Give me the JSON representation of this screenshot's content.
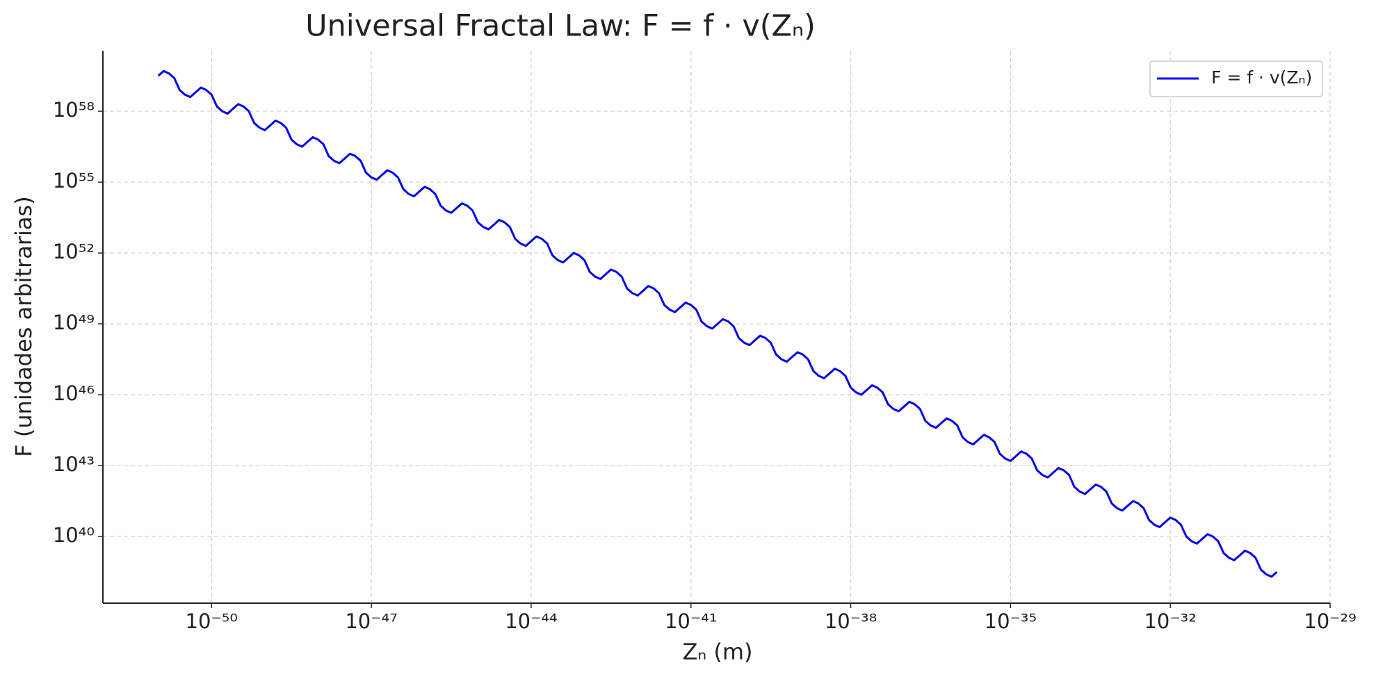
{
  "chart_data": {
    "type": "line",
    "title": "Universal Fractal Law: F = f · v(Zₙ)",
    "xlabel": "Zₙ (m)",
    "ylabel": "F (unidades arbitrarias)",
    "xscale": "log",
    "yscale": "log",
    "grid": true,
    "legend": "upper right",
    "xlim": [
      9.12e-53,
      1e-29
    ],
    "ylim": [
      1.51e+37,
      3.63e+60
    ],
    "xticks": [
      {
        "value": 1e-50,
        "label": "10⁻⁵⁰"
      },
      {
        "value": 1e-47,
        "label": "10⁻⁴⁷"
      },
      {
        "value": 1e-44,
        "label": "10⁻⁴⁴"
      },
      {
        "value": 1e-41,
        "label": "10⁻⁴¹"
      },
      {
        "value": 1e-38,
        "label": "10⁻³⁸"
      },
      {
        "value": 1e-35,
        "label": "10⁻³⁵"
      },
      {
        "value": 1e-32,
        "label": "10⁻³²"
      },
      {
        "value": 1e-29,
        "label": "10⁻²⁹"
      }
    ],
    "yticks": [
      {
        "value": 1e+58,
        "label": "10⁵⁸"
      },
      {
        "value": 1e+55,
        "label": "10⁵⁵"
      },
      {
        "value": 1e+52,
        "label": "10⁵²"
      },
      {
        "value": 1e+49,
        "label": "10⁴⁹"
      },
      {
        "value": 1e+46,
        "label": "10⁴⁶"
      },
      {
        "value": 1e+43,
        "label": "10⁴³"
      },
      {
        "value": 1e+40,
        "label": "10⁴⁰"
      }
    ],
    "x": [
      1e-51,
      1.26e-51,
      1.58e-51,
      2e-51,
      2.51e-51,
      3.16e-51,
      3.98e-51,
      5.01e-51,
      6.31e-51,
      7.94e-51,
      1e-50,
      1.26e-50,
      1.58e-50,
      2e-50,
      2.51e-50,
      3.16e-50,
      3.98e-50,
      5.01e-50,
      6.31e-50,
      7.94e-50,
      1e-49,
      1.26e-49,
      1.58e-49,
      2e-49,
      2.51e-49,
      3.16e-49,
      3.98e-49,
      5.01e-49,
      6.31e-49,
      7.94e-49,
      1e-48,
      1.26e-48,
      1.58e-48,
      2e-48,
      2.51e-48,
      3.16e-48,
      3.98e-48,
      5.01e-48,
      6.31e-48,
      7.94e-48,
      1e-47,
      1.26e-47,
      1.58e-47,
      2e-47,
      2.51e-47,
      3.16e-47,
      3.98e-47,
      5.01e-47,
      6.31e-47,
      7.94e-47,
      1e-46,
      1.26e-46,
      1.58e-46,
      2e-46,
      2.51e-46,
      3.16e-46,
      3.98e-46,
      5.01e-46,
      6.31e-46,
      7.94e-46,
      1e-45,
      1.26e-45,
      1.58e-45,
      2e-45,
      2.51e-45,
      3.16e-45,
      3.98e-45,
      5.01e-45,
      6.31e-45,
      7.94e-45,
      1e-44,
      1.26e-44,
      1.58e-44,
      2e-44,
      2.51e-44,
      3.16e-44,
      3.98e-44,
      5.01e-44,
      6.31e-44,
      7.94e-44,
      1e-43,
      1.26e-43,
      1.58e-43,
      2e-43,
      2.51e-43,
      3.16e-43,
      3.98e-43,
      5.01e-43,
      6.31e-43,
      7.94e-43,
      1e-42,
      1.26e-42,
      1.58e-42,
      2e-42,
      2.51e-42,
      3.16e-42,
      3.98e-42,
      5.01e-42,
      6.31e-42,
      7.94e-42,
      1e-41,
      1.26e-41,
      1.58e-41,
      2e-41,
      2.51e-41,
      3.16e-41,
      3.98e-41,
      5.01e-41,
      6.31e-41,
      7.94e-41,
      1e-40,
      1.26e-40,
      1.58e-40,
      2e-40,
      2.51e-40,
      3.16e-40,
      3.98e-40,
      5.01e-40,
      6.31e-40,
      7.94e-40,
      1e-39,
      1.26e-39,
      1.58e-39,
      2e-39,
      2.51e-39,
      3.16e-39,
      3.98e-39,
      5.01e-39,
      6.31e-39,
      7.94e-39,
      1e-38,
      1.26e-38,
      1.58e-38,
      2e-38,
      2.51e-38,
      3.16e-38,
      3.98e-38,
      5.01e-38,
      6.31e-38,
      7.94e-38,
      1e-37,
      1.26e-37,
      1.58e-37,
      2e-37,
      2.51e-37,
      3.16e-37,
      3.98e-37,
      5.01e-37,
      6.31e-37,
      7.94e-37,
      1e-36,
      1.26e-36,
      1.58e-36,
      2e-36,
      2.51e-36,
      3.16e-36,
      3.98e-36,
      5.01e-36,
      6.31e-36,
      7.94e-36,
      1e-35,
      1.26e-35,
      1.58e-35,
      2e-35,
      2.51e-35,
      3.16e-35,
      3.98e-35,
      5.01e-35,
      6.31e-35,
      7.94e-35,
      1e-34,
      1.26e-34,
      1.58e-34,
      2e-34,
      2.51e-34,
      3.16e-34,
      3.98e-34,
      5.01e-34,
      6.31e-34,
      7.94e-34,
      1e-33,
      1.26e-33,
      1.58e-33,
      2e-33,
      2.51e-33,
      3.16e-33,
      3.98e-33,
      5.01e-33,
      6.31e-33,
      7.94e-33,
      1e-32,
      1.26e-32,
      1.58e-32,
      2e-32,
      2.51e-32,
      3.16e-32,
      3.98e-32,
      5.01e-32,
      6.31e-32,
      7.94e-32,
      1e-31,
      1.26e-31,
      1.58e-31,
      2e-31,
      2.51e-31,
      3.16e-31,
      3.98e-31,
      5.01e-31,
      6.31e-31,
      7.94e-31,
      1e-30
    ],
    "series": [
      {
        "name": "F = f · v(Zₙ)",
        "color": "#0000ee",
        "values": [
          3.16e+59,
          5.01e+59,
          3.98e+59,
          2.51e+59,
          7.94e+58,
          5.01e+58,
          3.98e+58,
          6.31e+58,
          1e+59,
          7.94e+58,
          5.01e+58,
          1.58e+58,
          1e+58,
          7.94e+57,
          1.26e+58,
          2e+58,
          1.58e+58,
          1e+58,
          3.16e+57,
          2e+57,
          1.58e+57,
          2.51e+57,
          3.98e+57,
          3.16e+57,
          2e+57,
          6.31e+56,
          3.98e+56,
          3.16e+56,
          5.01e+56,
          7.94e+56,
          6.31e+56,
          3.98e+56,
          1.26e+56,
          7.94e+55,
          6.31e+55,
          1e+56,
          1.58e+56,
          1.26e+56,
          7.94e+55,
          2.51e+55,
          1.58e+55,
          1.26e+55,
          2e+55,
          3.16e+55,
          2.51e+55,
          1.58e+55,
          5.01e+54,
          3.16e+54,
          2.51e+54,
          3.98e+54,
          6.31e+54,
          5.01e+54,
          3.16e+54,
          1e+54,
          6.31e+53,
          5.01e+53,
          7.94e+53,
          1.26e+54,
          1e+54,
          6.31e+53,
          2e+53,
          1.26e+53,
          1e+53,
          1.58e+53,
          2.51e+53,
          2e+53,
          1.26e+53,
          3.98e+52,
          2.51e+52,
          2e+52,
          3.16e+52,
          5.01e+52,
          3.98e+52,
          2.51e+52,
          7.94e+51,
          5.01e+51,
          3.98e+51,
          6.31e+51,
          1e+52,
          7.94e+51,
          5.01e+51,
          1.58e+51,
          1e+51,
          7.94e+50,
          1.26e+51,
          2e+51,
          1.58e+51,
          1e+51,
          3.16e+50,
          2e+50,
          1.58e+50,
          2.51e+50,
          3.98e+50,
          3.16e+50,
          2e+50,
          6.31e+49,
          3.98e+49,
          3.16e+49,
          5.01e+49,
          7.94e+49,
          6.31e+49,
          3.98e+49,
          1.26e+49,
          7.94e+48,
          6.31e+48,
          1e+49,
          1.58e+49,
          1.26e+49,
          7.94e+48,
          2.51e+48,
          1.58e+48,
          1.26e+48,
          2e+48,
          3.16e+48,
          2.51e+48,
          1.58e+48,
          5.01e+47,
          3.16e+47,
          2.51e+47,
          3.98e+47,
          6.31e+47,
          5.01e+47,
          3.16e+47,
          1e+47,
          6.31e+46,
          5.01e+46,
          7.94e+46,
          1.26e+47,
          1e+47,
          6.31e+46,
          2e+46,
          1.26e+46,
          1e+46,
          1.58e+46,
          2.51e+46,
          2e+46,
          1.26e+46,
          3.98e+45,
          2.51e+45,
          2e+45,
          3.16e+45,
          5.01e+45,
          3.98e+45,
          2.51e+45,
          7.94e+44,
          5.01e+44,
          3.98e+44,
          6.31e+44,
          1e+45,
          7.94e+44,
          5.01e+44,
          1.58e+44,
          1e+44,
          7.94e+43,
          1.26e+44,
          2e+44,
          1.58e+44,
          1e+44,
          3.16e+43,
          2e+43,
          1.58e+43,
          2.51e+43,
          3.98e+43,
          3.16e+43,
          2e+43,
          6.31e+42,
          3.98e+42,
          3.16e+42,
          5.01e+42,
          7.94e+42,
          6.31e+42,
          3.98e+42,
          1.26e+42,
          7.94e+41,
          6.31e+41,
          1e+42,
          1.58e+42,
          1.26e+42,
          7.94e+41,
          2.51e+41,
          1.58e+41,
          1.26e+41,
          2e+41,
          3.16e+41,
          2.51e+41,
          1.58e+41,
          5.01e+40,
          3.16e+40,
          2.51e+40,
          3.98e+40,
          6.31e+40,
          5.01e+40,
          3.16e+40,
          1e+40,
          6.31e+39,
          5.01e+39,
          7.94e+39,
          1.26e+40,
          1e+40,
          6.31e+39,
          2e+39,
          1.26e+39,
          1e+39,
          1.58e+39,
          2.51e+39,
          2e+39,
          1.26e+39,
          3.98e+38,
          2.51e+38,
          2e+38,
          3.16e+38
        ]
      }
    ]
  }
}
